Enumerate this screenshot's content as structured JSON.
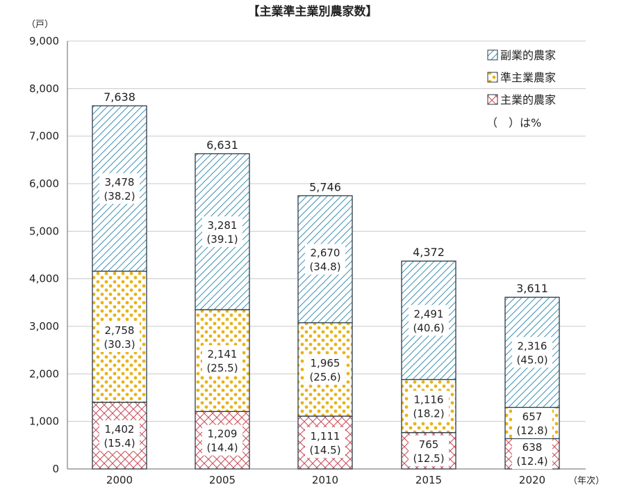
{
  "chart_data": {
    "type": "bar",
    "stacked": true,
    "title": "【主業準主業別農家数】",
    "ylabel": "（戸）",
    "xlabel": "（年次）",
    "ylim": [
      0,
      9000
    ],
    "yticks": [
      "0",
      "1,000",
      "2,000",
      "3,000",
      "4,000",
      "5,000",
      "6,000",
      "7,000",
      "8,000",
      "9,000"
    ],
    "categories": [
      "2000",
      "2005",
      "2010",
      "2015",
      "2020"
    ],
    "totals": [
      7638,
      6631,
      5746,
      4372,
      3611
    ],
    "total_labels": [
      "7,638",
      "6,631",
      "5,746",
      "4,372",
      "3,611"
    ],
    "series": [
      {
        "name": "主業的農家",
        "pattern": "crosshatch",
        "color": "#c9505a",
        "values": [
          1402,
          1209,
          1111,
          765,
          638
        ],
        "value_labels": [
          "1,402",
          "1,209",
          "1,111",
          "765",
          "638"
        ],
        "pct_labels": [
          "(15.4)",
          "(14.4)",
          "(14.5)",
          "(12.5)",
          "(12.4)"
        ]
      },
      {
        "name": "準主業農家",
        "pattern": "dots",
        "color": "#e8b31a",
        "values": [
          2758,
          2141,
          1965,
          1116,
          657
        ],
        "value_labels": [
          "2,758",
          "2,141",
          "1,965",
          "1,116",
          "657"
        ],
        "pct_labels": [
          "(30.3)",
          "(25.5)",
          "(25.6)",
          "(18.2)",
          "(12.8)"
        ]
      },
      {
        "name": "副業的農家",
        "pattern": "diagonal",
        "color": "#3a8fb0",
        "values": [
          3478,
          3281,
          2670,
          2491,
          2316
        ],
        "value_labels": [
          "3,478",
          "3,281",
          "2,670",
          "2,491",
          "2,316"
        ],
        "pct_labels": [
          "(38.2)",
          "(39.1)",
          "(34.8)",
          "(40.6)",
          "(45.0)"
        ]
      }
    ],
    "legend_note": "（　）は%",
    "legend_position": "top-right",
    "grid": true
  }
}
